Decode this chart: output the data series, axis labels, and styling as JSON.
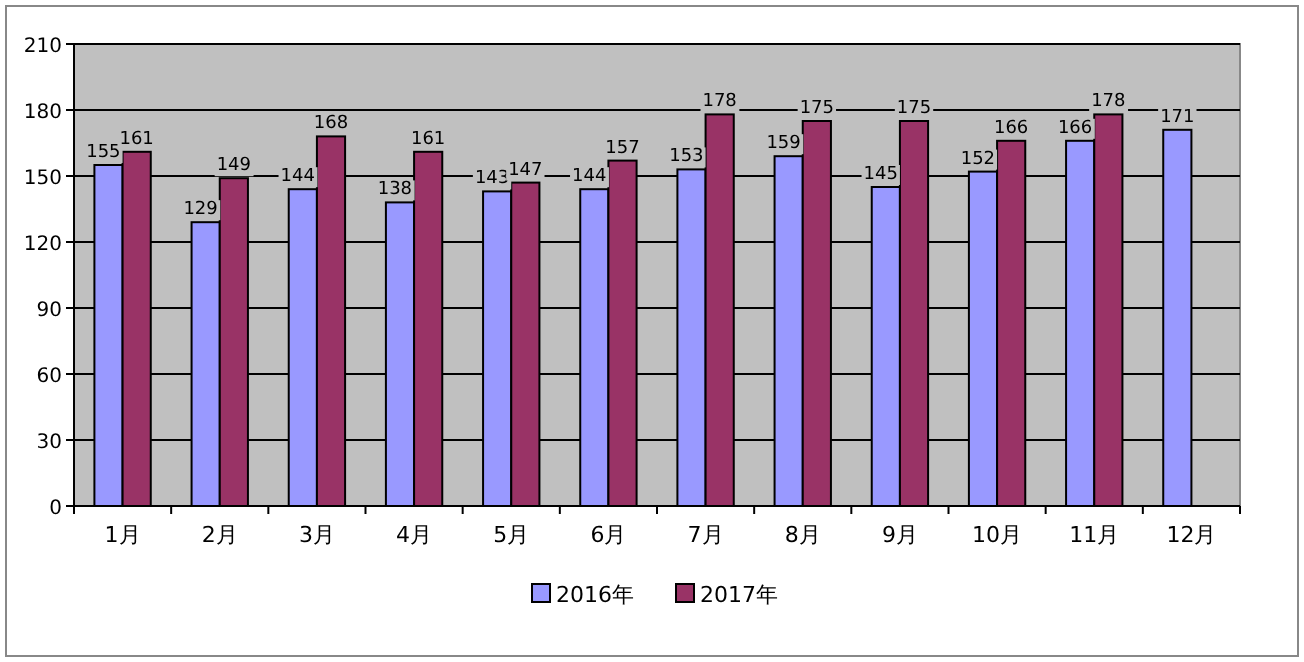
{
  "chart_data": {
    "type": "bar",
    "categories": [
      "1月",
      "2月",
      "3月",
      "4月",
      "5月",
      "6月",
      "7月",
      "8月",
      "9月",
      "10月",
      "11月",
      "12月"
    ],
    "series": [
      {
        "name": "2016年",
        "color": "#9999ff",
        "values": [
          155,
          129,
          144,
          138,
          143,
          144,
          153,
          159,
          145,
          152,
          166,
          171
        ]
      },
      {
        "name": "2017年",
        "color": "#993366",
        "values": [
          161,
          149,
          168,
          161,
          147,
          157,
          178,
          175,
          175,
          166,
          178,
          null
        ]
      }
    ],
    "ylim": [
      0,
      210
    ],
    "yticks": [
      0,
      30,
      60,
      90,
      120,
      150,
      180,
      210
    ],
    "grid": "y",
    "legend": "bottom",
    "data_labels": true
  }
}
